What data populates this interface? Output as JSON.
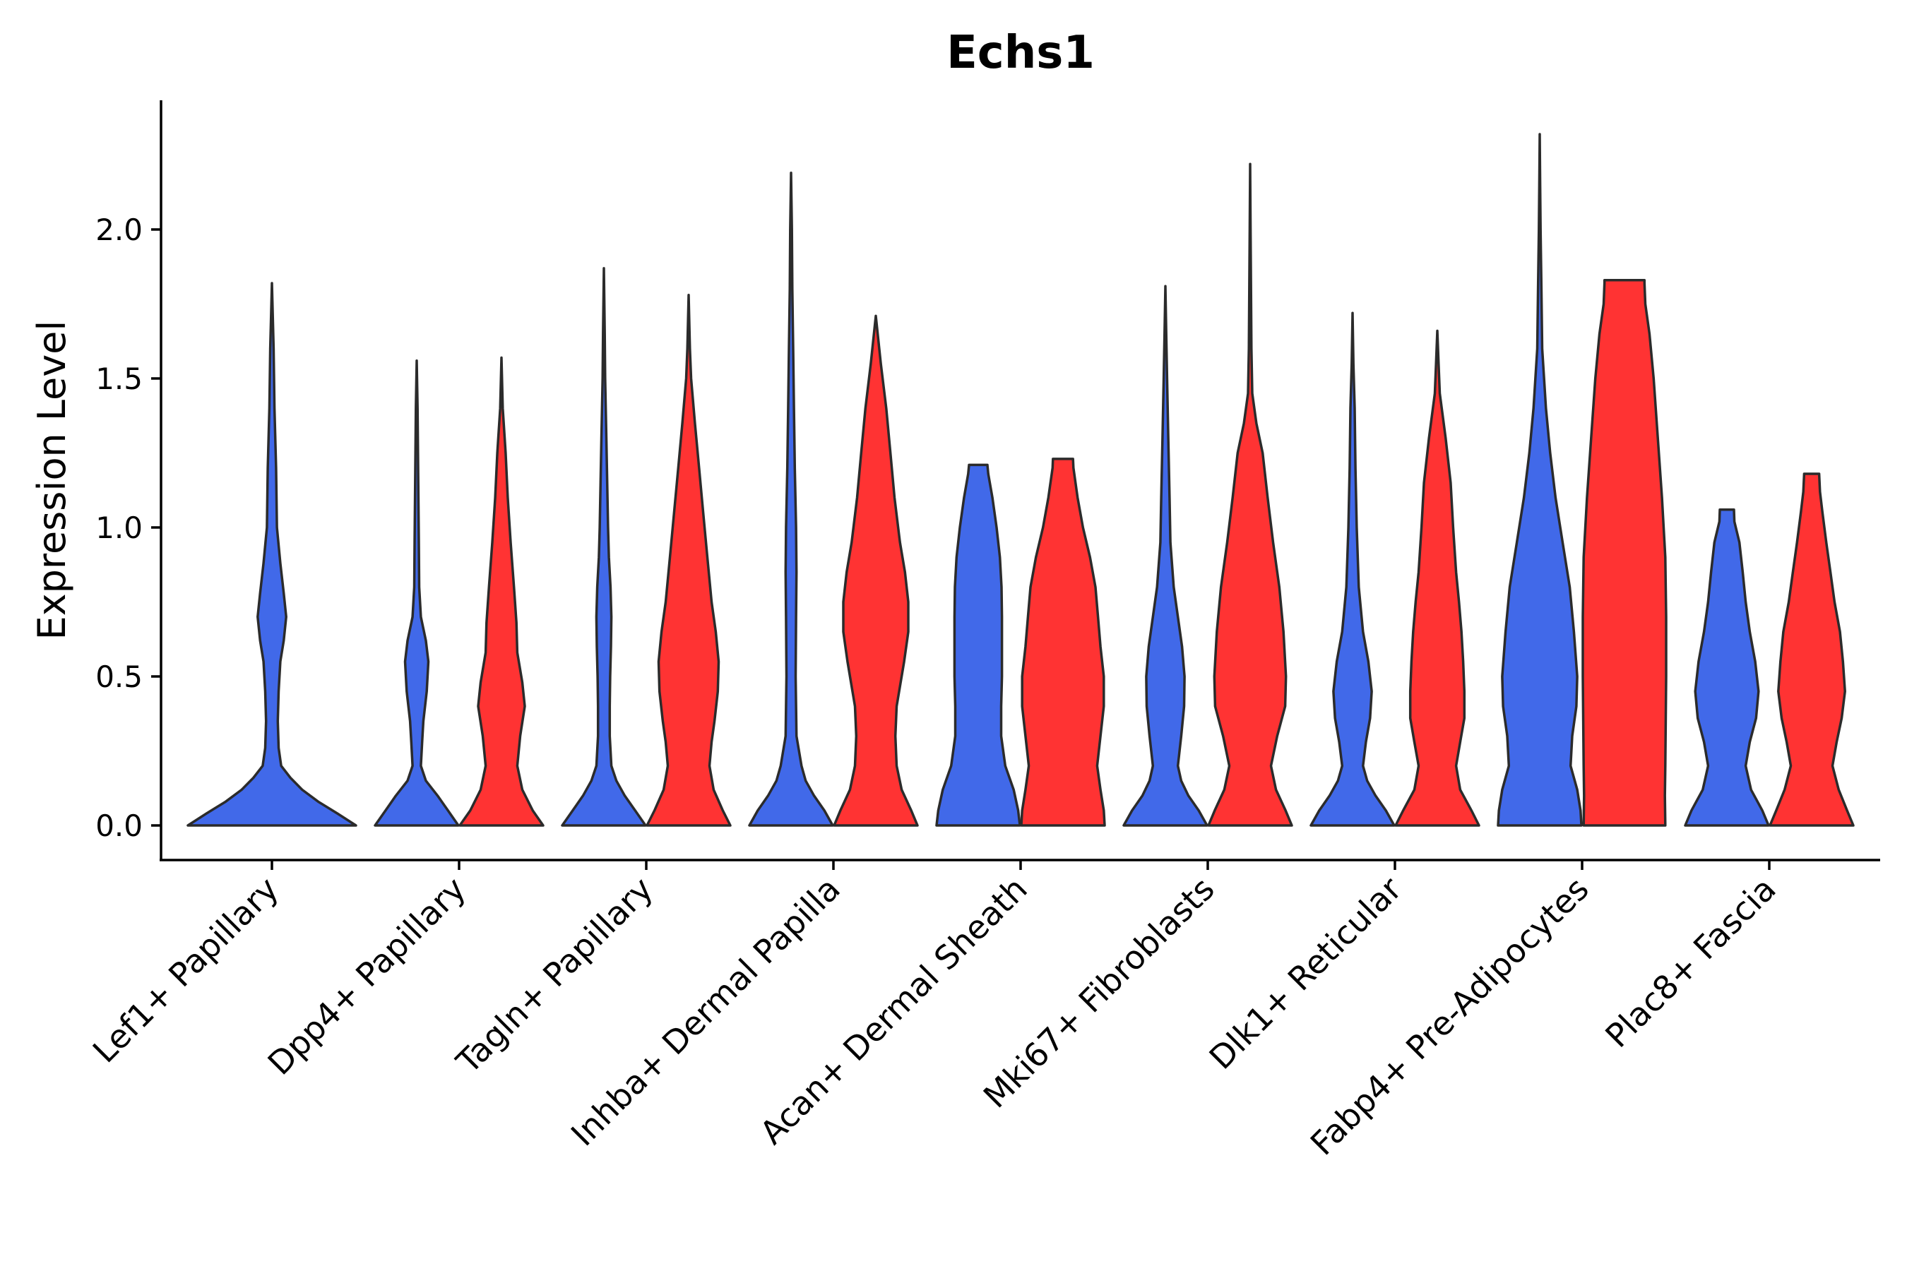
{
  "chart_data": {
    "type": "violin",
    "title": "Echs1",
    "xlabel": "",
    "ylabel": "Expression Level",
    "ylim": [
      -0.12,
      2.45
    ],
    "yticks": [
      "0.0",
      "0.5",
      "1.0",
      "1.5",
      "2.0"
    ],
    "ytick_values": [
      0,
      0.5,
      1.0,
      1.5,
      2.0
    ],
    "colors": {
      "blue": "#4169E9",
      "red": "#FF3333"
    },
    "categories": [
      "Lef1+ Papillary",
      "Dpp4+ Papillary",
      "Tagln+ Papillary",
      "Inhba+ Dermal Papilla",
      "Acan+ Dermal Sheath",
      "Mki67+ Fibroblasts",
      "Dlk1+ Reticular",
      "Fabp4+ Pre-Adipocytes",
      "Plac8+ Fascia"
    ],
    "violins": [
      {
        "category": "Lef1+ Papillary",
        "group": "blue",
        "side": "single",
        "max": 1.82,
        "profile": [
          [
            0,
            1.0
          ],
          [
            0.04,
            0.78
          ],
          [
            0.08,
            0.55
          ],
          [
            0.12,
            0.36
          ],
          [
            0.16,
            0.22
          ],
          [
            0.2,
            0.11
          ],
          [
            0.26,
            0.08
          ],
          [
            0.35,
            0.07
          ],
          [
            0.45,
            0.08
          ],
          [
            0.55,
            0.1
          ],
          [
            0.62,
            0.14
          ],
          [
            0.7,
            0.17
          ],
          [
            0.78,
            0.14
          ],
          [
            0.88,
            0.1
          ],
          [
            1.0,
            0.06
          ],
          [
            1.2,
            0.05
          ],
          [
            1.4,
            0.03
          ],
          [
            1.6,
            0.02
          ],
          [
            1.82,
            0.0
          ]
        ]
      },
      {
        "category": "Dpp4+ Papillary",
        "group": "blue",
        "side": "left",
        "max": 1.56,
        "profile": [
          [
            0,
            1.0
          ],
          [
            0.05,
            0.75
          ],
          [
            0.1,
            0.5
          ],
          [
            0.15,
            0.22
          ],
          [
            0.2,
            0.1
          ],
          [
            0.28,
            0.13
          ],
          [
            0.35,
            0.16
          ],
          [
            0.45,
            0.24
          ],
          [
            0.55,
            0.28
          ],
          [
            0.62,
            0.22
          ],
          [
            0.7,
            0.1
          ],
          [
            0.8,
            0.06
          ],
          [
            0.95,
            0.05
          ],
          [
            1.1,
            0.04
          ],
          [
            1.25,
            0.03
          ],
          [
            1.4,
            0.02
          ],
          [
            1.56,
            0.0
          ]
        ]
      },
      {
        "category": "Dpp4+ Papillary",
        "group": "red",
        "side": "right",
        "max": 1.57,
        "profile": [
          [
            0,
            1.0
          ],
          [
            0.05,
            0.75
          ],
          [
            0.12,
            0.5
          ],
          [
            0.2,
            0.38
          ],
          [
            0.3,
            0.45
          ],
          [
            0.4,
            0.56
          ],
          [
            0.48,
            0.5
          ],
          [
            0.58,
            0.38
          ],
          [
            0.68,
            0.36
          ],
          [
            0.8,
            0.3
          ],
          [
            0.95,
            0.22
          ],
          [
            1.1,
            0.15
          ],
          [
            1.25,
            0.1
          ],
          [
            1.4,
            0.03
          ],
          [
            1.57,
            0.0
          ]
        ]
      },
      {
        "category": "Tagln+ Papillary",
        "group": "blue",
        "side": "left",
        "max": 1.87,
        "profile": [
          [
            0,
            1.0
          ],
          [
            0.05,
            0.75
          ],
          [
            0.1,
            0.5
          ],
          [
            0.15,
            0.3
          ],
          [
            0.2,
            0.18
          ],
          [
            0.3,
            0.14
          ],
          [
            0.4,
            0.14
          ],
          [
            0.5,
            0.15
          ],
          [
            0.6,
            0.17
          ],
          [
            0.7,
            0.18
          ],
          [
            0.8,
            0.16
          ],
          [
            0.9,
            0.12
          ],
          [
            1.0,
            0.1
          ],
          [
            1.15,
            0.08
          ],
          [
            1.3,
            0.06
          ],
          [
            1.5,
            0.03
          ],
          [
            1.65,
            0.02
          ],
          [
            1.87,
            0.0
          ]
        ]
      },
      {
        "category": "Tagln+ Papillary",
        "group": "red",
        "side": "right",
        "max": 1.78,
        "profile": [
          [
            0,
            1.0
          ],
          [
            0.05,
            0.82
          ],
          [
            0.12,
            0.6
          ],
          [
            0.2,
            0.5
          ],
          [
            0.28,
            0.55
          ],
          [
            0.35,
            0.62
          ],
          [
            0.45,
            0.7
          ],
          [
            0.55,
            0.72
          ],
          [
            0.65,
            0.65
          ],
          [
            0.75,
            0.55
          ],
          [
            0.9,
            0.45
          ],
          [
            1.05,
            0.35
          ],
          [
            1.2,
            0.25
          ],
          [
            1.35,
            0.15
          ],
          [
            1.5,
            0.06
          ],
          [
            1.6,
            0.03
          ],
          [
            1.78,
            0.0
          ]
        ]
      },
      {
        "category": "Inhba+ Dermal Papilla",
        "group": "blue",
        "side": "left",
        "max": 2.19,
        "profile": [
          [
            0,
            1.0
          ],
          [
            0.05,
            0.8
          ],
          [
            0.1,
            0.55
          ],
          [
            0.15,
            0.35
          ],
          [
            0.2,
            0.25
          ],
          [
            0.3,
            0.13
          ],
          [
            0.5,
            0.11
          ],
          [
            0.7,
            0.12
          ],
          [
            0.85,
            0.13
          ],
          [
            1.0,
            0.12
          ],
          [
            1.2,
            0.09
          ],
          [
            1.4,
            0.07
          ],
          [
            1.6,
            0.05
          ],
          [
            1.8,
            0.03
          ],
          [
            2.0,
            0.02
          ],
          [
            2.19,
            0.0
          ]
        ]
      },
      {
        "category": "Inhba+ Dermal Papilla",
        "group": "red",
        "side": "right",
        "max": 1.71,
        "profile": [
          [
            0,
            1.0
          ],
          [
            0.05,
            0.85
          ],
          [
            0.12,
            0.62
          ],
          [
            0.2,
            0.5
          ],
          [
            0.3,
            0.47
          ],
          [
            0.4,
            0.5
          ],
          [
            0.55,
            0.68
          ],
          [
            0.65,
            0.78
          ],
          [
            0.75,
            0.78
          ],
          [
            0.85,
            0.7
          ],
          [
            0.95,
            0.58
          ],
          [
            1.1,
            0.45
          ],
          [
            1.25,
            0.35
          ],
          [
            1.4,
            0.25
          ],
          [
            1.55,
            0.12
          ],
          [
            1.71,
            0.0
          ]
        ]
      },
      {
        "category": "Acan+ Dermal Sheath",
        "group": "blue",
        "side": "left",
        "max": 1.21,
        "profile": [
          [
            0,
            1.0
          ],
          [
            0.05,
            0.96
          ],
          [
            0.12,
            0.85
          ],
          [
            0.2,
            0.65
          ],
          [
            0.3,
            0.55
          ],
          [
            0.4,
            0.55
          ],
          [
            0.5,
            0.57
          ],
          [
            0.6,
            0.57
          ],
          [
            0.7,
            0.57
          ],
          [
            0.8,
            0.56
          ],
          [
            0.9,
            0.52
          ],
          [
            1.0,
            0.44
          ],
          [
            1.1,
            0.34
          ],
          [
            1.18,
            0.24
          ],
          [
            1.21,
            0.22
          ]
        ]
      },
      {
        "category": "Acan+ Dermal Sheath",
        "group": "red",
        "side": "right",
        "max": 1.23,
        "profile": [
          [
            0,
            1.0
          ],
          [
            0.05,
            0.98
          ],
          [
            0.12,
            0.9
          ],
          [
            0.2,
            0.82
          ],
          [
            0.3,
            0.9
          ],
          [
            0.4,
            0.98
          ],
          [
            0.5,
            0.98
          ],
          [
            0.6,
            0.9
          ],
          [
            0.7,
            0.84
          ],
          [
            0.8,
            0.78
          ],
          [
            0.9,
            0.65
          ],
          [
            1.0,
            0.48
          ],
          [
            1.1,
            0.35
          ],
          [
            1.2,
            0.25
          ],
          [
            1.23,
            0.24
          ]
        ]
      },
      {
        "category": "Mki67+ Fibroblasts",
        "group": "blue",
        "side": "left",
        "max": 1.81,
        "profile": [
          [
            0,
            1.0
          ],
          [
            0.05,
            0.8
          ],
          [
            0.1,
            0.55
          ],
          [
            0.15,
            0.38
          ],
          [
            0.2,
            0.3
          ],
          [
            0.3,
            0.38
          ],
          [
            0.4,
            0.45
          ],
          [
            0.5,
            0.46
          ],
          [
            0.6,
            0.4
          ],
          [
            0.7,
            0.3
          ],
          [
            0.8,
            0.2
          ],
          [
            0.95,
            0.12
          ],
          [
            1.1,
            0.1
          ],
          [
            1.3,
            0.07
          ],
          [
            1.5,
            0.04
          ],
          [
            1.65,
            0.02
          ],
          [
            1.81,
            0.0
          ]
        ]
      },
      {
        "category": "Mki67+ Fibroblasts",
        "group": "red",
        "side": "right",
        "max": 2.22,
        "profile": [
          [
            0,
            1.0
          ],
          [
            0.05,
            0.85
          ],
          [
            0.12,
            0.62
          ],
          [
            0.2,
            0.5
          ],
          [
            0.3,
            0.65
          ],
          [
            0.4,
            0.84
          ],
          [
            0.5,
            0.86
          ],
          [
            0.65,
            0.8
          ],
          [
            0.8,
            0.7
          ],
          [
            0.95,
            0.55
          ],
          [
            1.1,
            0.42
          ],
          [
            1.25,
            0.3
          ],
          [
            1.35,
            0.15
          ],
          [
            1.45,
            0.05
          ],
          [
            1.6,
            0.03
          ],
          [
            1.8,
            0.02
          ],
          [
            2.0,
            0.01
          ],
          [
            2.22,
            0.0
          ]
        ]
      },
      {
        "category": "Dlk1+ Reticular",
        "group": "blue",
        "side": "left",
        "max": 1.72,
        "profile": [
          [
            0,
            1.0
          ],
          [
            0.05,
            0.8
          ],
          [
            0.1,
            0.55
          ],
          [
            0.15,
            0.35
          ],
          [
            0.2,
            0.25
          ],
          [
            0.28,
            0.32
          ],
          [
            0.36,
            0.42
          ],
          [
            0.45,
            0.46
          ],
          [
            0.55,
            0.38
          ],
          [
            0.65,
            0.25
          ],
          [
            0.8,
            0.15
          ],
          [
            1.0,
            0.1
          ],
          [
            1.2,
            0.07
          ],
          [
            1.4,
            0.05
          ],
          [
            1.55,
            0.02
          ],
          [
            1.72,
            0.0
          ]
        ]
      },
      {
        "category": "Dlk1+ Reticular",
        "group": "red",
        "side": "right",
        "max": 1.66,
        "profile": [
          [
            0,
            1.0
          ],
          [
            0.05,
            0.82
          ],
          [
            0.12,
            0.55
          ],
          [
            0.2,
            0.45
          ],
          [
            0.28,
            0.55
          ],
          [
            0.36,
            0.65
          ],
          [
            0.45,
            0.65
          ],
          [
            0.55,
            0.62
          ],
          [
            0.65,
            0.58
          ],
          [
            0.75,
            0.52
          ],
          [
            0.85,
            0.45
          ],
          [
            1.0,
            0.38
          ],
          [
            1.15,
            0.32
          ],
          [
            1.3,
            0.2
          ],
          [
            1.45,
            0.06
          ],
          [
            1.55,
            0.03
          ],
          [
            1.66,
            0.0
          ]
        ]
      },
      {
        "category": "Fabp4+ Pre-Adipocytes",
        "group": "blue",
        "side": "left",
        "max": 2.32,
        "profile": [
          [
            0,
            1.0
          ],
          [
            0.05,
            0.98
          ],
          [
            0.12,
            0.9
          ],
          [
            0.2,
            0.74
          ],
          [
            0.3,
            0.78
          ],
          [
            0.4,
            0.88
          ],
          [
            0.5,
            0.9
          ],
          [
            0.65,
            0.82
          ],
          [
            0.8,
            0.72
          ],
          [
            0.95,
            0.55
          ],
          [
            1.1,
            0.38
          ],
          [
            1.25,
            0.25
          ],
          [
            1.4,
            0.15
          ],
          [
            1.6,
            0.06
          ],
          [
            1.8,
            0.04
          ],
          [
            2.0,
            0.02
          ],
          [
            2.15,
            0.01
          ],
          [
            2.32,
            0.0
          ]
        ]
      },
      {
        "category": "Fabp4+ Pre-Adipocytes",
        "group": "red",
        "side": "right",
        "max": 1.83,
        "profile": [
          [
            0,
            0.98
          ],
          [
            0.1,
            0.97
          ],
          [
            0.2,
            0.98
          ],
          [
            0.35,
            0.99
          ],
          [
            0.5,
            1.0
          ],
          [
            0.7,
            1.0
          ],
          [
            0.9,
            0.98
          ],
          [
            1.1,
            0.9
          ],
          [
            1.3,
            0.8
          ],
          [
            1.5,
            0.7
          ],
          [
            1.65,
            0.6
          ],
          [
            1.75,
            0.5
          ],
          [
            1.82,
            0.48
          ],
          [
            1.83,
            0.48
          ]
        ]
      },
      {
        "category": "Plac8+ Fascia",
        "group": "blue",
        "side": "left",
        "max": 1.06,
        "profile": [
          [
            0,
            1.0
          ],
          [
            0.05,
            0.85
          ],
          [
            0.12,
            0.58
          ],
          [
            0.2,
            0.45
          ],
          [
            0.28,
            0.55
          ],
          [
            0.36,
            0.7
          ],
          [
            0.45,
            0.76
          ],
          [
            0.55,
            0.68
          ],
          [
            0.65,
            0.55
          ],
          [
            0.75,
            0.45
          ],
          [
            0.85,
            0.38
          ],
          [
            0.95,
            0.3
          ],
          [
            1.02,
            0.18
          ],
          [
            1.06,
            0.17
          ]
        ]
      },
      {
        "category": "Plac8+ Fascia",
        "group": "red",
        "side": "right",
        "max": 1.18,
        "profile": [
          [
            0,
            1.0
          ],
          [
            0.05,
            0.85
          ],
          [
            0.12,
            0.65
          ],
          [
            0.2,
            0.5
          ],
          [
            0.28,
            0.6
          ],
          [
            0.36,
            0.72
          ],
          [
            0.45,
            0.8
          ],
          [
            0.55,
            0.75
          ],
          [
            0.65,
            0.68
          ],
          [
            0.75,
            0.55
          ],
          [
            0.85,
            0.45
          ],
          [
            0.95,
            0.35
          ],
          [
            1.05,
            0.26
          ],
          [
            1.12,
            0.2
          ],
          [
            1.18,
            0.18
          ]
        ]
      }
    ]
  }
}
